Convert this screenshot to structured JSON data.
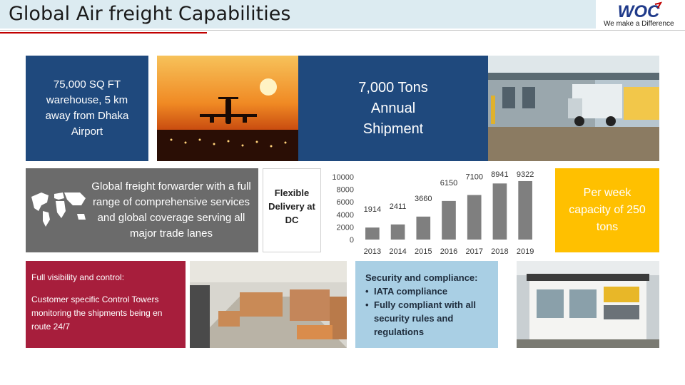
{
  "header": {
    "title": "Global Air freight Capabilities",
    "logo_text": "WOC",
    "tagline": "We make a Difference"
  },
  "tiles": {
    "warehouse": "75,000 SQ FT warehouse, 5 km away from Dhaka Airport",
    "annual_shipment": "7,000 Tons Annual Shipment",
    "global_forwarder": "Global freight forwarder with a full range of comprehensive services and global coverage serving  all major trade lanes",
    "flexible_delivery": "Flexible Delivery at DC",
    "weekly_capacity": "Per week capacity of 250 tons",
    "visibility_heading": "Full visibility and control:",
    "visibility_body": "Customer specific Control Towers monitoring the shipments being en route 24/7",
    "security_heading": "Security and compliance:",
    "security_points": [
      "IATA compliance",
      "Fully compliant with all security rules and regulations"
    ]
  },
  "colors": {
    "navy": "#1f497d",
    "grey": "#6b6b6b",
    "gold": "#ffc000",
    "light_blue": "#a9cfe4",
    "maroon": "#a71e3c",
    "bar": "#7f7f7f",
    "title_band": "#dcebf1",
    "accent_red": "#c00000"
  },
  "icons": [
    "world-map-icon",
    "airplane-sunset-image",
    "truck-yard-image",
    "warehouse-interior-image",
    "security-booth-image"
  ],
  "chart_data": {
    "type": "bar",
    "categories": [
      "2013",
      "2014",
      "2015",
      "2016",
      "2017",
      "2018",
      "2019"
    ],
    "values": [
      1914,
      2411,
      3660,
      6150,
      7100,
      8941,
      9322
    ],
    "data_labels": [
      "1914",
      "2411",
      "3660",
      "6150",
      "7100",
      "8941",
      "9322"
    ],
    "y_ticks": [
      "10000",
      "8000",
      "6000",
      "4000",
      "2000",
      "0"
    ],
    "ylim": [
      0,
      10000
    ],
    "title": "",
    "xlabel": "",
    "ylabel": "",
    "grid": false,
    "legend": "none"
  }
}
